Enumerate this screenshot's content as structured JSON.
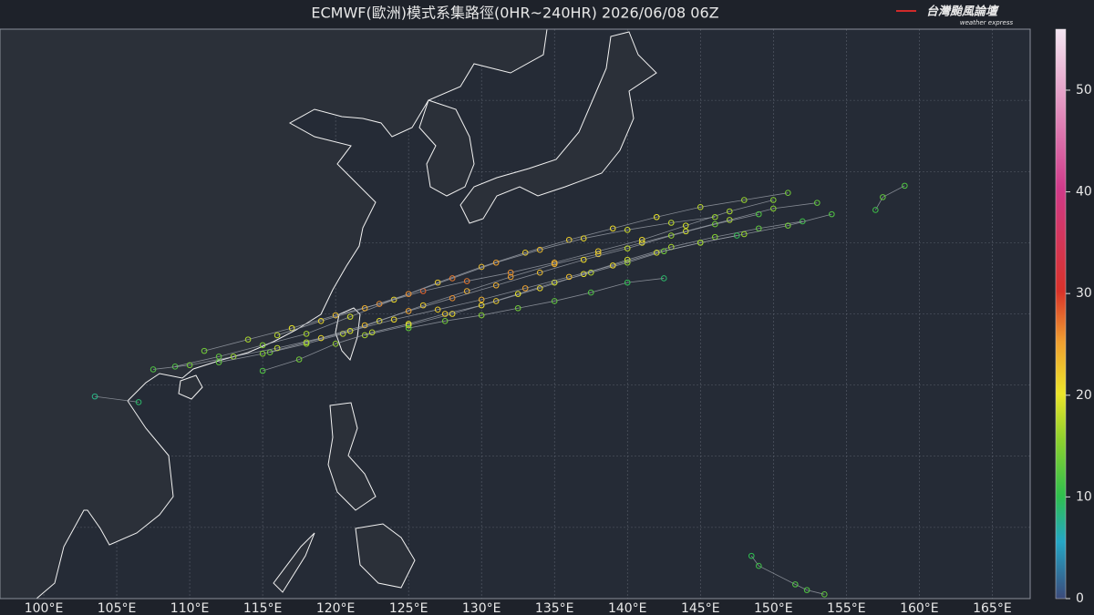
{
  "chart_data": {
    "type": "track-map",
    "title": "ECMWF(歐洲)模式系集路徑(0HR~240HR) 2026/06/08 06Z",
    "logo": {
      "name": "台灣颱風論壇",
      "tagline": "weather express"
    },
    "xlim": [
      97,
      167.6
    ],
    "ylim": [
      5,
      45
    ],
    "xticks": [
      {
        "value": 100,
        "label": "100°E"
      },
      {
        "value": 105,
        "label": "105°E"
      },
      {
        "value": 110,
        "label": "110°E"
      },
      {
        "value": 115,
        "label": "115°E"
      },
      {
        "value": 120,
        "label": "120°E"
      },
      {
        "value": 125,
        "label": "125°E"
      },
      {
        "value": 130,
        "label": "130°E"
      },
      {
        "value": 135,
        "label": "135°E"
      },
      {
        "value": 140,
        "label": "140°E"
      },
      {
        "value": 145,
        "label": "145°E"
      },
      {
        "value": 150,
        "label": "150°E"
      },
      {
        "value": 155,
        "label": "155°E"
      },
      {
        "value": 160,
        "label": "160°E"
      },
      {
        "value": 165,
        "label": "165°E"
      }
    ],
    "ygrid": [
      10,
      15,
      20,
      25,
      30,
      35,
      40,
      45
    ],
    "colorbar": {
      "lim": [
        0,
        56
      ],
      "ticks": [
        0,
        10,
        20,
        30,
        40,
        50
      ]
    },
    "tracks": [
      {
        "lon": [
          151,
          148,
          145,
          142,
          139,
          136,
          133,
          130,
          127,
          124,
          121,
          118,
          115,
          112,
          109
        ],
        "lat": [
          33.5,
          33,
          32.5,
          31.8,
          31,
          30.2,
          29.3,
          28.3,
          27.2,
          26,
          24.8,
          23.6,
          22.8,
          22,
          21.3
        ],
        "wind": [
          14,
          16,
          18,
          20,
          21,
          22,
          22,
          23,
          22,
          21,
          19,
          17,
          15,
          13,
          12
        ]
      },
      {
        "lon": [
          153,
          150,
          147,
          144,
          141,
          138,
          135,
          132,
          129,
          126,
          123,
          120.5,
          118,
          115.5
        ],
        "lat": [
          32.8,
          32.4,
          31.6,
          30.8,
          30,
          29.2,
          28.5,
          27.6,
          26.6,
          25.6,
          24.5,
          23.6,
          22.9,
          22.3
        ],
        "wind": [
          13,
          15,
          17,
          19,
          20,
          22,
          24,
          25,
          24,
          22,
          20,
          18,
          16,
          14
        ]
      },
      {
        "lon": [
          149,
          146,
          143,
          140,
          137,
          134,
          131,
          128,
          125,
          122,
          119,
          116,
          113,
          110,
          107.5
        ],
        "lat": [
          32,
          31.3,
          30.5,
          29.6,
          28.8,
          27.9,
          27,
          26.1,
          25.2,
          24.2,
          23.3,
          22.6,
          22,
          21.4,
          21.1
        ],
        "wind": [
          12,
          14,
          16,
          18,
          21,
          23,
          24,
          26,
          25,
          23,
          21,
          18,
          16,
          14,
          12
        ]
      },
      {
        "lon": [
          152,
          149,
          146,
          143,
          140,
          137,
          134,
          131,
          128,
          125,
          122
        ],
        "lat": [
          31.5,
          31,
          30.4,
          29.7,
          28.8,
          27.8,
          26.8,
          25.9,
          25,
          24.2,
          23.5
        ],
        "wind": [
          11,
          13,
          15,
          17,
          19,
          20,
          21,
          22,
          21,
          19,
          17
        ]
      },
      {
        "lon": [
          150,
          147,
          144,
          141,
          138,
          135,
          132,
          129,
          126,
          123,
          120,
          117,
          114,
          111
        ],
        "lat": [
          33,
          32.2,
          31.2,
          30.2,
          29.4,
          28.6,
          27.9,
          27.3,
          26.6,
          25.7,
          24.9,
          24,
          23.2,
          22.4
        ],
        "wind": [
          15,
          17,
          19,
          21,
          22,
          24,
          26,
          27,
          28,
          26,
          23,
          20,
          17,
          14
        ]
      },
      {
        "lon": [
          147.5,
          145,
          142.5,
          140,
          137.5,
          135,
          132.5,
          130,
          127.5,
          125,
          122.5,
          120,
          117.5,
          115
        ],
        "lat": [
          30.5,
          30,
          29.4,
          28.6,
          27.9,
          27.2,
          26.4,
          25.6,
          25,
          24.3,
          23.7,
          22.9,
          21.8,
          21
        ],
        "wind": [
          10,
          12,
          14,
          16,
          18,
          19,
          20,
          21,
          22,
          20,
          18,
          16,
          14,
          12
        ]
      },
      {
        "lon": [
          154,
          151,
          148,
          145,
          142,
          139,
          136,
          133,
          130,
          127,
          124,
          121,
          118,
          115,
          112
        ],
        "lat": [
          32,
          31.2,
          30.6,
          30,
          29.3,
          28.4,
          27.6,
          26.8,
          26,
          25.3,
          24.6,
          23.8,
          23,
          22.2,
          21.6
        ],
        "wind": [
          12,
          14,
          16,
          17,
          19,
          21,
          23,
          25,
          24,
          22,
          21,
          19,
          17,
          15,
          13
        ]
      },
      {
        "lon": [
          142.5,
          140,
          137.5,
          135,
          132.5,
          130,
          127.5,
          125
        ],
        "lat": [
          27.5,
          27.2,
          26.5,
          25.9,
          25.4,
          24.9,
          24.5,
          24
        ],
        "wind": [
          9,
          10,
          12,
          13,
          14,
          15,
          14,
          13
        ]
      },
      {
        "lon": [
          146,
          143,
          140,
          137,
          134,
          131,
          128,
          125,
          122,
          119,
          116
        ],
        "lat": [
          31.8,
          31.4,
          30.9,
          30.3,
          29.5,
          28.6,
          27.5,
          26.4,
          25.4,
          24.5,
          23.5
        ],
        "wind": [
          16,
          18,
          19,
          21,
          23,
          25,
          27,
          26,
          24,
          21,
          18
        ]
      },
      {
        "lon": [
          148.5,
          149,
          151.5,
          152.3,
          153.5
        ],
        "lat": [
          8,
          7.3,
          6,
          5.6,
          5.3
        ],
        "wind": [
          10,
          11,
          12,
          12,
          13
        ]
      },
      {
        "lon": [
          103.5,
          106.5
        ],
        "lat": [
          19.2,
          18.8
        ],
        "wind": [
          8,
          9
        ]
      },
      {
        "lon": [
          159,
          157.5,
          157
        ],
        "lat": [
          34,
          33.2,
          32.3
        ],
        "wind": [
          12,
          13,
          11
        ]
      }
    ]
  }
}
